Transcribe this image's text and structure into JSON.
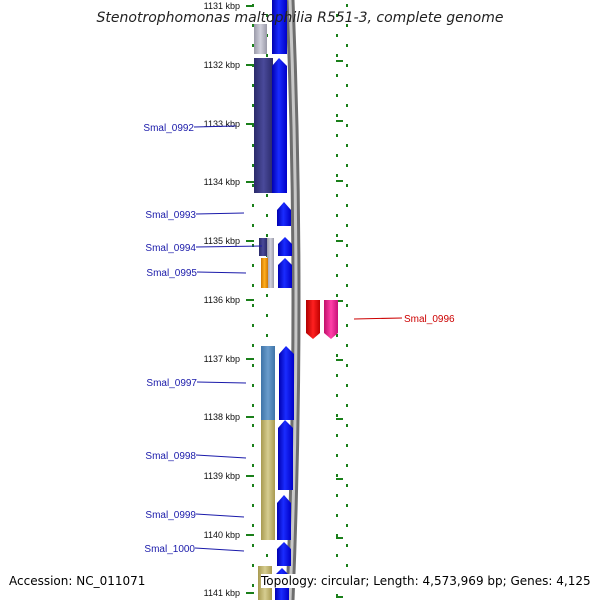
{
  "title": "Stenotrophomonas maltophilia R551-3, complete genome",
  "accession": "Accession: NC_011071",
  "summary": "Topology: circular; Length: 4,573,969 bp; Genes: 4,125",
  "colors": {
    "tick_green": "#1a7f1a",
    "gene_label_blue": "#1a1aaa",
    "gene_label_red": "#cc0000",
    "backbone_gray": "#8a8a8a",
    "blue_arrow": "#0a14f0"
  },
  "ruler": {
    "unit": "kbp",
    "ticks": [
      {
        "label": "1131 kbp"
      },
      {
        "label": "1132 kbp"
      },
      {
        "label": "1133 kbp"
      },
      {
        "label": "1134 kbp"
      },
      {
        "label": "1135 kbp"
      },
      {
        "label": "1136 kbp"
      },
      {
        "label": "1137 kbp"
      },
      {
        "label": "1138 kbp"
      },
      {
        "label": "1139 kbp"
      },
      {
        "label": "1140 kbp"
      },
      {
        "label": "1141 kbp"
      }
    ]
  },
  "genes": [
    {
      "label": "Smal_0992",
      "color": "#3c3c8c"
    },
    {
      "label": "Smal_0993",
      "color": "#0a14f0"
    },
    {
      "label": "Smal_0994",
      "color": "#55558f"
    },
    {
      "label": "Smal_0995",
      "color": "#f0a010"
    },
    {
      "label": "Smal_0996",
      "color": "#ee0000"
    },
    {
      "label": "Smal_0997",
      "color": "#5a8ec0"
    },
    {
      "label": "Smal_0998",
      "color": "#c8bf80"
    },
    {
      "label": "Smal_0999",
      "color": "#c8bf80"
    },
    {
      "label": "Smal_1000",
      "color": "#0a14f0"
    }
  ]
}
